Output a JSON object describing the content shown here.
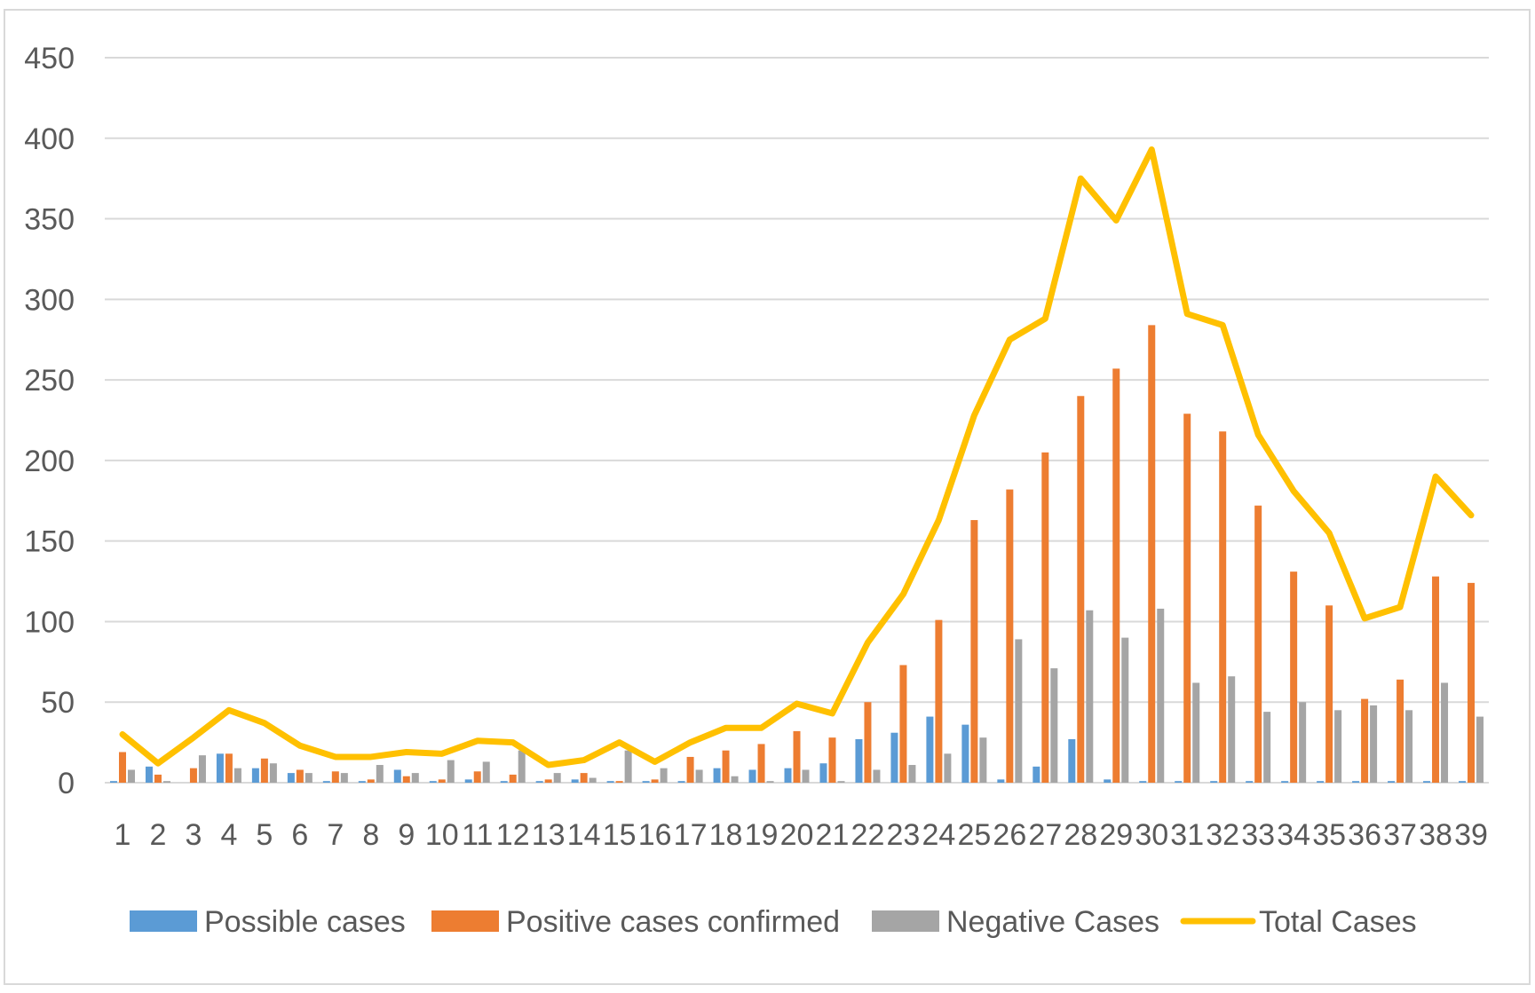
{
  "chart_data": {
    "type": "bar",
    "title": "",
    "xlabel": "",
    "ylabel": "",
    "ylim": [
      0,
      450
    ],
    "yticks": [
      0,
      50,
      100,
      150,
      200,
      250,
      300,
      350,
      400,
      450
    ],
    "grid": true,
    "legend_position": "bottom",
    "categories": [
      "1",
      "2",
      "3",
      "4",
      "5",
      "6",
      "7",
      "8",
      "9",
      "10",
      "11",
      "12",
      "13",
      "14",
      "15",
      "16",
      "17",
      "18",
      "19",
      "20",
      "21",
      "22",
      "23",
      "24",
      "25",
      "26",
      "27",
      "28",
      "29",
      "30",
      "31",
      "32",
      "33",
      "34",
      "35",
      "36",
      "37",
      "38",
      "39"
    ],
    "series": [
      {
        "name": "Possible cases",
        "type": "bar",
        "color": "#5b9bd5",
        "values": [
          1,
          10,
          0,
          18,
          9,
          6,
          1,
          1,
          8,
          1,
          2,
          1,
          1,
          2,
          1,
          1,
          1,
          9,
          8,
          9,
          12,
          27,
          31,
          41,
          36,
          2,
          10,
          27,
          2,
          1,
          1,
          1,
          1,
          1,
          1,
          1,
          1,
          1,
          1
        ]
      },
      {
        "name": "Positive cases confirmed",
        "type": "bar",
        "color": "#ed7d31",
        "values": [
          19,
          5,
          9,
          18,
          15,
          8,
          7,
          2,
          4,
          2,
          7,
          5,
          2,
          6,
          1,
          2,
          16,
          20,
          24,
          32,
          28,
          50,
          73,
          101,
          163,
          182,
          205,
          240,
          257,
          284,
          229,
          218,
          172,
          131,
          110,
          52,
          64,
          128,
          124
        ]
      },
      {
        "name": "Negative Cases",
        "type": "bar",
        "color": "#a5a5a5",
        "values": [
          8,
          1,
          17,
          9,
          12,
          6,
          6,
          11,
          6,
          14,
          13,
          20,
          6,
          3,
          20,
          9,
          8,
          4,
          1,
          8,
          1,
          8,
          11,
          18,
          28,
          89,
          71,
          107,
          90,
          108,
          62,
          66,
          44,
          50,
          45,
          48,
          45,
          62,
          41
        ]
      },
      {
        "name": "Total Cases",
        "type": "line",
        "color": "#ffc000",
        "values": [
          30,
          12,
          28,
          45,
          37,
          23,
          16,
          16,
          19,
          18,
          26,
          25,
          11,
          14,
          25,
          13,
          25,
          34,
          34,
          49,
          43,
          87,
          117,
          163,
          228,
          275,
          288,
          375,
          349,
          393,
          291,
          284,
          216,
          181,
          155,
          102,
          109,
          190,
          166
        ]
      }
    ]
  }
}
